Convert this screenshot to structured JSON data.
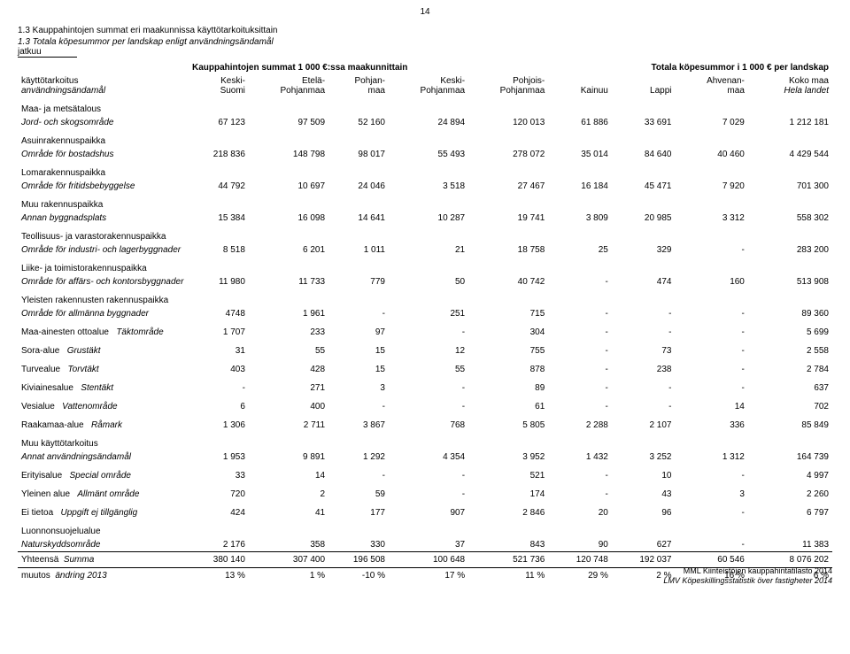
{
  "page_number": "14",
  "heading1": "1.3 Kauppahintojen summat eri maakunnissa käyttötarkoituksittain",
  "heading2": "1.3 Totala köpesummor per landskap enligt användningsändamål",
  "jatkuu": "jatkuu",
  "super_left": "Kauppahintojen summat 1 000 €:ssa maakunnittain",
  "super_right": "Totala köpesummor i 1 000 € per landskap",
  "colhead_label_fi": "käyttötarkoitus",
  "colhead_label_sv": "användningsändamål",
  "columns": [
    {
      "l1": "Keski-",
      "l2": "Suomi"
    },
    {
      "l1": "Etelä-",
      "l2": "Pohjanmaa"
    },
    {
      "l1": "Pohjan-",
      "l2": "maa"
    },
    {
      "l1": "Keski-",
      "l2": "Pohjanmaa"
    },
    {
      "l1": "Pohjois-",
      "l2": "Pohjanmaa"
    },
    {
      "l1": "Kainuu",
      "l2": ""
    },
    {
      "l1": "Lappi",
      "l2": ""
    },
    {
      "l1": "Ahvenan-",
      "l2": "maa"
    },
    {
      "l1": "Koko maa",
      "l2": "Hela landet"
    }
  ],
  "rows": [
    {
      "fi": "Maa- ja metsätalous",
      "sv": "Jord- och skogsområde",
      "v": [
        "67 123",
        "97 509",
        "52 160",
        "24 894",
        "120 013",
        "61 886",
        "33 691",
        "7 029",
        "1 212 181"
      ]
    },
    {
      "fi": "Asuinrakennuspaikka",
      "sv": "Område för bostadshus",
      "v": [
        "218 836",
        "148 798",
        "98 017",
        "55 493",
        "278 072",
        "35 014",
        "84 640",
        "40 460",
        "4 429 544"
      ]
    },
    {
      "fi": "Lomarakennuspaikka",
      "sv": "Område för fritidsbebyggelse",
      "v": [
        "44 792",
        "10 697",
        "24 046",
        "3 518",
        "27 467",
        "16 184",
        "45 471",
        "7 920",
        "701 300"
      ]
    },
    {
      "fi": "Muu rakennuspaikka",
      "sv": "Annan byggnadsplats",
      "v": [
        "15 384",
        "16 098",
        "14 641",
        "10 287",
        "19 741",
        "3 809",
        "20 985",
        "3 312",
        "558 302"
      ]
    },
    {
      "fi": "Teollisuus- ja varastorakennuspaikka",
      "sv": "Område för industri- och lagerbyggnader",
      "v": [
        "8 518",
        "6 201",
        "1 011",
        "21",
        "18 758",
        "25",
        "329",
        "-",
        "283 200"
      ]
    },
    {
      "fi": "Liike- ja toimistorakennuspaikka",
      "sv": "Område för affärs- och kontorsbyggnader",
      "v": [
        "11 980",
        "11 733",
        "779",
        "50",
        "40 742",
        "-",
        "474",
        "160",
        "513 908"
      ]
    },
    {
      "fi": "Yleisten rakennusten rakennuspaikka",
      "sv": "Område för allmänna byggnader",
      "v": [
        "4748",
        "1 961",
        "-",
        "251",
        "715",
        "-",
        "-",
        "-",
        "89 360"
      ]
    },
    {
      "fi": "Maa-ainesten ottoalue",
      "sv": "Täktområde",
      "v": [
        "1 707",
        "233",
        "97",
        "-",
        "304",
        "-",
        "-",
        "-",
        "5 699"
      ],
      "inline": true
    },
    {
      "fi": "Sora-alue",
      "sv": "Grustäkt",
      "v": [
        "31",
        "55",
        "15",
        "12",
        "755",
        "-",
        "73",
        "-",
        "2 558"
      ],
      "inline": true
    },
    {
      "fi": "Turvealue",
      "sv": "Torvtäkt",
      "v": [
        "403",
        "428",
        "15",
        "55",
        "878",
        "-",
        "238",
        "-",
        "2 784"
      ],
      "inline": true
    },
    {
      "fi": "Kiviainesalue",
      "sv": "Stentäkt",
      "v": [
        "-",
        "271",
        "3",
        "-",
        "89",
        "-",
        "-",
        "-",
        "637"
      ],
      "inline": true
    },
    {
      "fi": "Vesialue",
      "sv": "Vattenområde",
      "v": [
        "6",
        "400",
        "-",
        "-",
        "61",
        "-",
        "-",
        "14",
        "702"
      ],
      "inline": true
    },
    {
      "fi": "Raakamaa-alue",
      "sv": "Råmark",
      "v": [
        "1 306",
        "2 711",
        "3 867",
        "768",
        "5 805",
        "2 288",
        "2 107",
        "336",
        "85 849"
      ],
      "inline": true
    },
    {
      "fi": "Muu käyttötarkoitus",
      "sv": "Annat användningsändamål",
      "v": [
        "1 953",
        "9 891",
        "1 292",
        "4 354",
        "3 952",
        "1 432",
        "3 252",
        "1 312",
        "164 739"
      ]
    },
    {
      "fi": "Erityisalue",
      "sv": "Special område",
      "v": [
        "33",
        "14",
        "-",
        "-",
        "521",
        "-",
        "10",
        "-",
        "4 997"
      ],
      "inline": true
    },
    {
      "fi": "Yleinen alue",
      "sv": "Allmänt område",
      "v": [
        "720",
        "2",
        "59",
        "-",
        "174",
        "-",
        "43",
        "3",
        "2 260"
      ],
      "inline": true
    },
    {
      "fi": "Ei tietoa",
      "sv": "Uppgift ej tillgänglig",
      "v": [
        "424",
        "41",
        "177",
        "907",
        "2 846",
        "20",
        "96",
        "-",
        "6 797"
      ],
      "inline": true
    },
    {
      "fi": "Luonnonsuojelualue",
      "sv": "Naturskyddsområde",
      "v": [
        "2 176",
        "358",
        "330",
        "37",
        "843",
        "90",
        "627",
        "-",
        "11 383"
      ]
    }
  ],
  "sum": {
    "fi": "Yhteensä",
    "sv": "Summa",
    "v": [
      "380 140",
      "307 400",
      "196 508",
      "100 648",
      "521 736",
      "120 748",
      "192 037",
      "60 546",
      "8 076 202"
    ]
  },
  "muutos": {
    "fi": "muutos",
    "sv": "ändring  2013",
    "v": [
      "13 %",
      "1 %",
      "-10 %",
      "17 %",
      "11 %",
      "29 %",
      "2 %",
      "16 %",
      "6 %"
    ]
  },
  "footer1": "MML Kiinteistöjen kauppahintatilasto 2014",
  "footer2": "LMV Köpeskillingsstatistik över fastigheter 2014"
}
